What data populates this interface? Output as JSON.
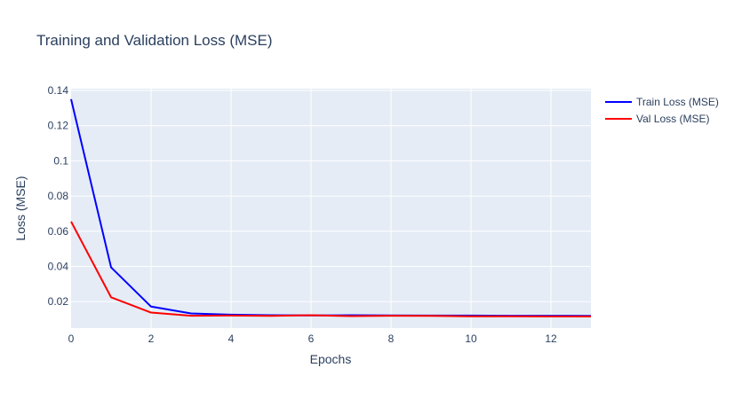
{
  "chart_data": {
    "type": "line",
    "title": "Training and Validation Loss (MSE)",
    "xlabel": "Epochs",
    "ylabel": "Loss (MSE)",
    "xlim": [
      0,
      13
    ],
    "ylim": [
      0.005,
      0.141
    ],
    "x_ticks": [
      0,
      2,
      4,
      6,
      8,
      10,
      12
    ],
    "x_tick_labels": [
      "0",
      "2",
      "4",
      "6",
      "8",
      "10",
      "12"
    ],
    "y_ticks": [
      0.02,
      0.04,
      0.06,
      0.08,
      0.1,
      0.12,
      0.14
    ],
    "y_tick_labels": [
      "0.02",
      "0.04",
      "0.06",
      "0.08",
      "0.1",
      "0.12",
      "0.14"
    ],
    "grid": true,
    "legend_position": "top-right",
    "x": [
      0,
      1,
      2,
      3,
      4,
      5,
      6,
      7,
      8,
      9,
      10,
      11,
      12,
      13
    ],
    "series": [
      {
        "name": "Train Loss (MSE)",
        "color": "#0000ff",
        "values": [
          0.135,
          0.0395,
          0.0172,
          0.0133,
          0.0126,
          0.0123,
          0.0122,
          0.0123,
          0.0122,
          0.0121,
          0.0121,
          0.012,
          0.012,
          0.0119
        ]
      },
      {
        "name": "Val Loss (MSE)",
        "color": "#ff0000",
        "values": [
          0.0655,
          0.0225,
          0.0138,
          0.012,
          0.0121,
          0.0119,
          0.0123,
          0.0118,
          0.012,
          0.0119,
          0.0117,
          0.0117,
          0.0116,
          0.0116
        ]
      }
    ]
  }
}
